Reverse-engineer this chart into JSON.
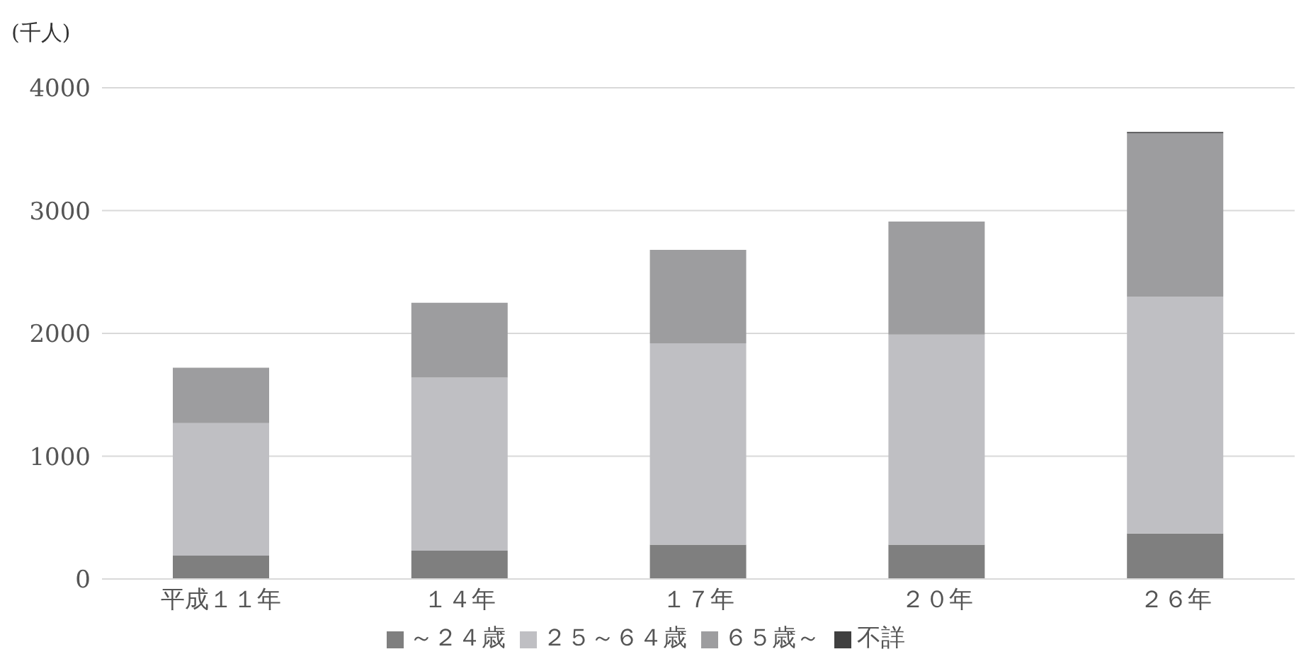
{
  "chart_data": {
    "type": "bar",
    "stacked": true,
    "ylabel": "(千人)",
    "categories": [
      "平成１１年",
      "１４年",
      "１７年",
      "２０年",
      "２６年"
    ],
    "series": [
      {
        "name": "～２４歳",
        "color": "#7f7f7f",
        "values": [
          190,
          230,
          280,
          280,
          370
        ]
      },
      {
        "name": "２５～６４歳",
        "color": "#bfbfc3",
        "values": [
          1080,
          1410,
          1640,
          1710,
          1930
        ]
      },
      {
        "name": "６５歳～",
        "color": "#9d9d9f",
        "values": [
          450,
          610,
          760,
          920,
          1330
        ]
      },
      {
        "name": "不詳",
        "color": "#404040",
        "values": [
          0,
          0,
          0,
          0,
          10
        ]
      }
    ],
    "ylim": [
      0,
      4000
    ],
    "yticks": [
      0,
      1000,
      2000,
      3000,
      4000
    ],
    "grid": "y",
    "legend": "bottom"
  }
}
